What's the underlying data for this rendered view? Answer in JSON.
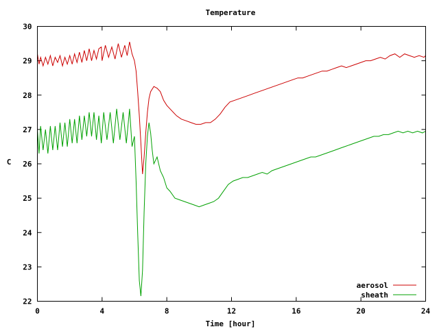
{
  "chart_data": {
    "type": "line",
    "title": "Temperature",
    "xlabel": "Time [hour]",
    "ylabel": "C",
    "xlim": [
      0,
      24
    ],
    "ylim": [
      22,
      30
    ],
    "xticks": [
      0,
      4,
      8,
      12,
      16,
      20,
      24
    ],
    "yticks": [
      22,
      23,
      24,
      25,
      26,
      27,
      28,
      29,
      30
    ],
    "grid": false,
    "legend": "bottom-right",
    "series": [
      {
        "name": "aerosol",
        "color": "#cc0000",
        "x": [
          0,
          0.1,
          0.2,
          0.35,
          0.5,
          0.65,
          0.8,
          0.95,
          1.1,
          1.25,
          1.4,
          1.55,
          1.7,
          1.85,
          2.0,
          2.15,
          2.3,
          2.45,
          2.6,
          2.75,
          2.9,
          3.05,
          3.2,
          3.35,
          3.5,
          3.65,
          3.8,
          3.95,
          4.0,
          4.2,
          4.4,
          4.6,
          4.8,
          5.0,
          5.2,
          5.4,
          5.55,
          5.7,
          5.85,
          6.0,
          6.1,
          6.2,
          6.3,
          6.4,
          6.5,
          6.6,
          6.7,
          6.8,
          6.9,
          7.0,
          7.2,
          7.4,
          7.6,
          7.8,
          8.0,
          8.3,
          8.6,
          8.9,
          9.2,
          9.5,
          9.8,
          10.1,
          10.4,
          10.7,
          11.0,
          11.3,
          11.6,
          11.9,
          12.2,
          12.5,
          12.8,
          13.1,
          13.4,
          13.7,
          14.0,
          14.3,
          14.6,
          14.9,
          15.2,
          15.5,
          15.8,
          16.1,
          16.4,
          16.7,
          17.0,
          17.3,
          17.6,
          17.9,
          18.2,
          18.5,
          18.8,
          19.1,
          19.4,
          19.7,
          20.0,
          20.3,
          20.6,
          20.9,
          21.2,
          21.5,
          21.8,
          22.1,
          22.4,
          22.7,
          23.0,
          23.3,
          23.6,
          23.9,
          24.0
        ],
        "y": [
          29.2,
          28.9,
          29.1,
          28.85,
          29.1,
          28.9,
          29.15,
          28.85,
          29.1,
          28.95,
          29.15,
          28.85,
          29.1,
          28.9,
          29.15,
          28.9,
          29.2,
          28.95,
          29.25,
          28.95,
          29.3,
          29.0,
          29.35,
          29.0,
          29.3,
          29.05,
          29.35,
          29.4,
          29.0,
          29.45,
          29.1,
          29.4,
          29.05,
          29.5,
          29.1,
          29.45,
          29.15,
          29.55,
          29.2,
          29.0,
          28.7,
          28.1,
          27.4,
          26.6,
          25.7,
          26.2,
          26.9,
          27.5,
          27.9,
          28.1,
          28.25,
          28.2,
          28.1,
          27.85,
          27.7,
          27.55,
          27.4,
          27.3,
          27.25,
          27.2,
          27.15,
          27.15,
          27.2,
          27.2,
          27.3,
          27.45,
          27.65,
          27.8,
          27.85,
          27.9,
          27.95,
          28.0,
          28.05,
          28.1,
          28.15,
          28.2,
          28.25,
          28.3,
          28.35,
          28.4,
          28.45,
          28.5,
          28.5,
          28.55,
          28.6,
          28.65,
          28.7,
          28.7,
          28.75,
          28.8,
          28.85,
          28.8,
          28.85,
          28.9,
          28.95,
          29.0,
          29.0,
          29.05,
          29.1,
          29.05,
          29.15,
          29.2,
          29.1,
          29.2,
          29.15,
          29.1,
          29.15,
          29.1,
          29.15
        ]
      },
      {
        "name": "sheath",
        "color": "#00a000",
        "x": [
          0,
          0.1,
          0.2,
          0.35,
          0.5,
          0.65,
          0.8,
          0.95,
          1.1,
          1.25,
          1.4,
          1.55,
          1.7,
          1.85,
          2.0,
          2.15,
          2.3,
          2.45,
          2.6,
          2.75,
          2.9,
          3.05,
          3.2,
          3.35,
          3.5,
          3.65,
          3.8,
          3.95,
          4.1,
          4.3,
          4.5,
          4.7,
          4.9,
          5.1,
          5.3,
          5.5,
          5.7,
          5.85,
          6.0,
          6.1,
          6.2,
          6.3,
          6.4,
          6.5,
          6.6,
          6.7,
          6.8,
          6.9,
          7.0,
          7.1,
          7.2,
          7.4,
          7.6,
          7.8,
          8.0,
          8.2,
          8.5,
          8.8,
          9.1,
          9.4,
          9.7,
          10.0,
          10.3,
          10.6,
          10.9,
          11.2,
          11.5,
          11.8,
          12.1,
          12.4,
          12.7,
          13.0,
          13.3,
          13.6,
          13.9,
          14.2,
          14.5,
          14.8,
          15.1,
          15.4,
          15.7,
          16.0,
          16.3,
          16.6,
          16.9,
          17.2,
          17.5,
          17.8,
          18.1,
          18.4,
          18.7,
          19.0,
          19.3,
          19.6,
          19.9,
          20.2,
          20.5,
          20.8,
          21.1,
          21.4,
          21.7,
          22.0,
          22.3,
          22.6,
          22.9,
          23.2,
          23.5,
          23.8,
          24.0
        ],
        "y": [
          27.0,
          26.3,
          27.1,
          26.4,
          27.0,
          26.3,
          27.1,
          26.4,
          27.1,
          26.4,
          27.2,
          26.5,
          27.2,
          26.5,
          27.3,
          26.6,
          27.3,
          26.6,
          27.4,
          26.7,
          27.4,
          26.8,
          27.5,
          26.8,
          27.5,
          26.7,
          27.4,
          26.6,
          27.5,
          26.7,
          27.5,
          26.6,
          27.6,
          26.7,
          27.5,
          26.6,
          27.6,
          26.5,
          26.8,
          25.5,
          24.0,
          22.6,
          22.15,
          22.9,
          24.6,
          26.0,
          26.8,
          27.2,
          26.9,
          26.4,
          26.0,
          26.2,
          25.8,
          25.6,
          25.3,
          25.2,
          25.0,
          24.95,
          24.9,
          24.85,
          24.8,
          24.75,
          24.8,
          24.85,
          24.9,
          25.0,
          25.2,
          25.4,
          25.5,
          25.55,
          25.6,
          25.6,
          25.65,
          25.7,
          25.75,
          25.7,
          25.8,
          25.85,
          25.9,
          25.95,
          26.0,
          26.05,
          26.1,
          26.15,
          26.2,
          26.2,
          26.25,
          26.3,
          26.35,
          26.4,
          26.45,
          26.5,
          26.55,
          26.6,
          26.65,
          26.7,
          26.75,
          26.8,
          26.8,
          26.85,
          26.85,
          26.9,
          26.95,
          26.9,
          26.95,
          26.9,
          26.95,
          26.9,
          26.95
        ]
      }
    ]
  }
}
